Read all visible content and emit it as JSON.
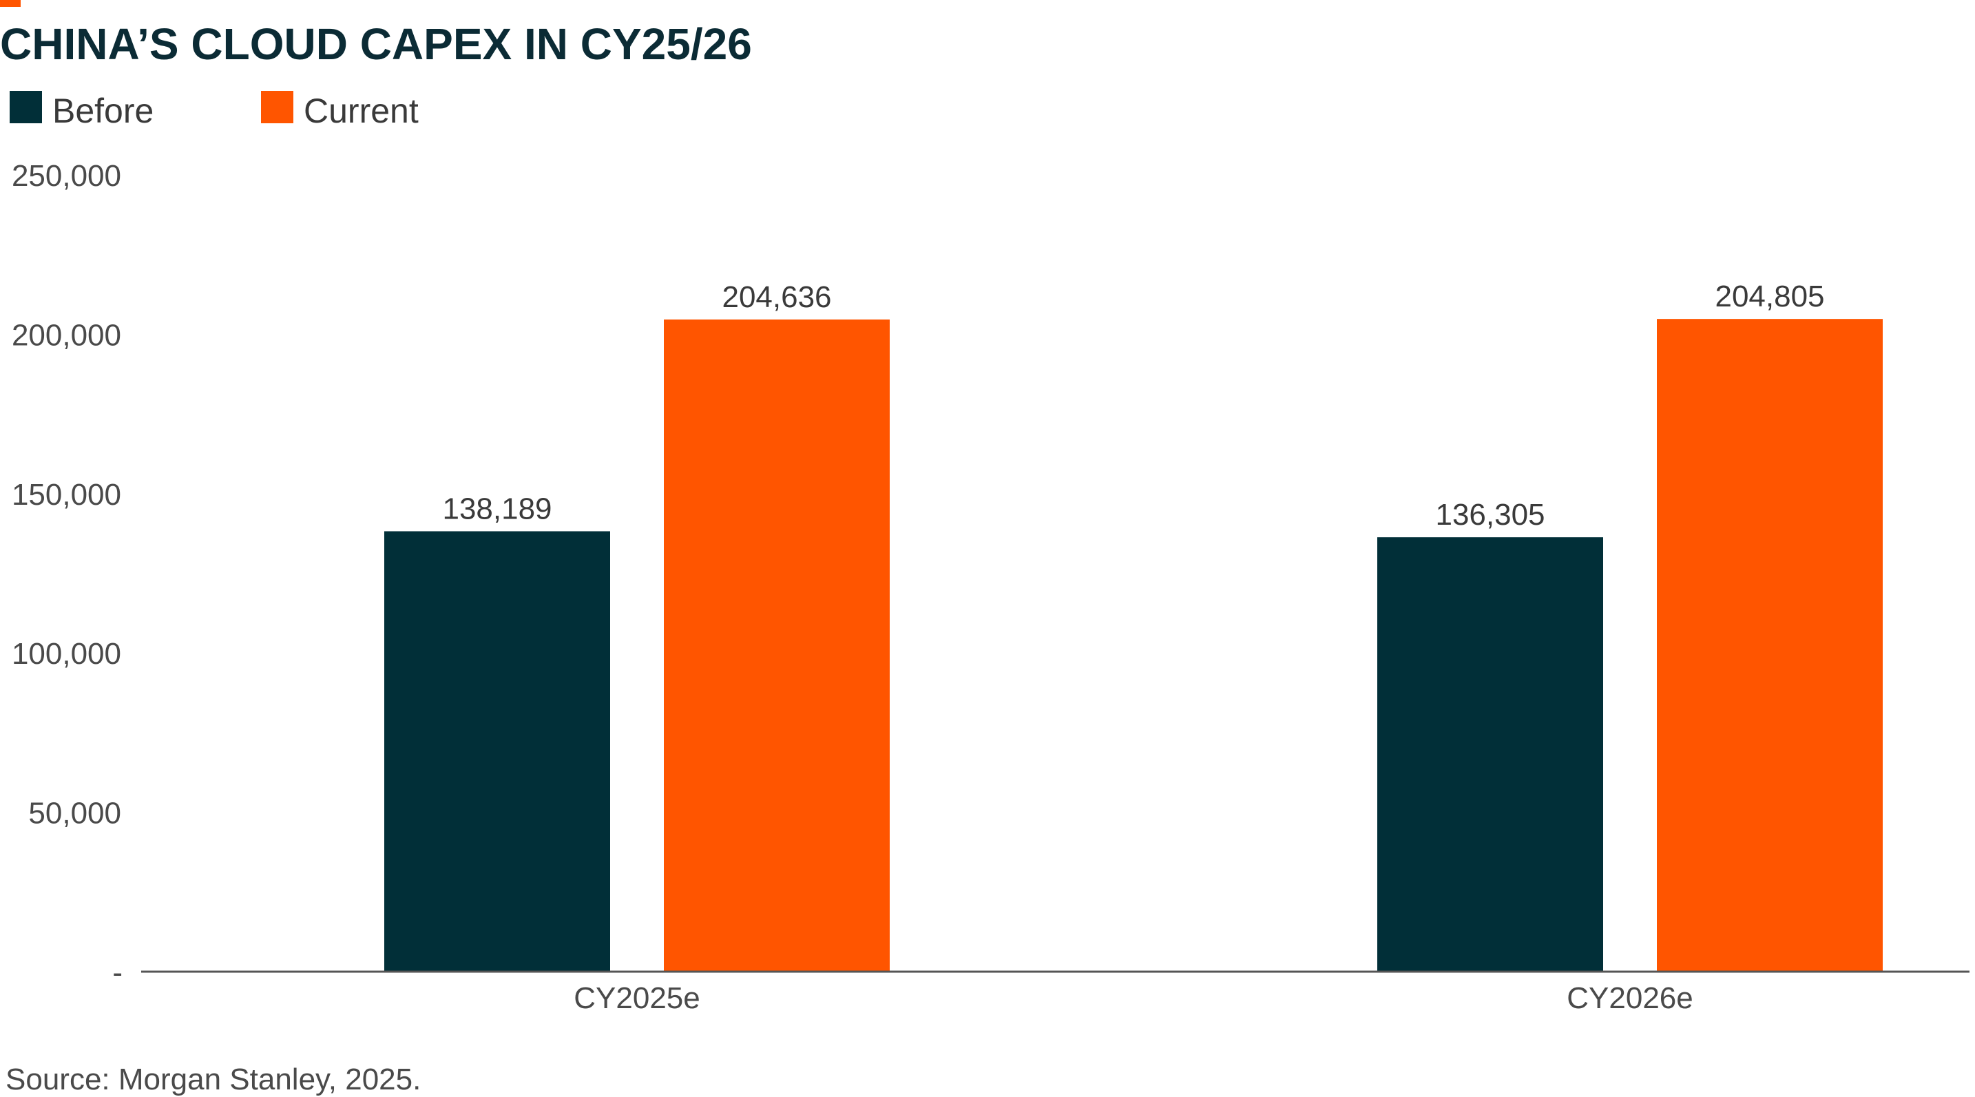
{
  "colors": {
    "accent": "#ff5500",
    "before": "#012f38",
    "current": "#ff5500",
    "title": "#0b2b35",
    "axis": "#555555"
  },
  "chart_data": {
    "type": "bar",
    "title": "CHINA’S CLOUD CAPEX IN CY25/26",
    "xlabel": "",
    "ylabel": "",
    "categories": [
      "CY2025e",
      "CY2026e"
    ],
    "series": [
      {
        "name": "Before",
        "values": [
          138189,
          136305
        ],
        "labels": [
          "138,189",
          "136,305"
        ]
      },
      {
        "name": "Current",
        "values": [
          204636,
          204805
        ],
        "labels": [
          "204,636",
          "204,805"
        ]
      }
    ],
    "ylim": [
      0,
      250000
    ],
    "yticks": [
      {
        "value": 0,
        "label": "-"
      },
      {
        "value": 50000,
        "label": "50,000"
      },
      {
        "value": 100000,
        "label": "100,000"
      },
      {
        "value": 150000,
        "label": "150,000"
      },
      {
        "value": 200000,
        "label": "200,000"
      },
      {
        "value": 250000,
        "label": "250,000"
      }
    ],
    "grid": false,
    "legend_position": "top-left"
  },
  "source": "Source: Morgan Stanley, 2025."
}
